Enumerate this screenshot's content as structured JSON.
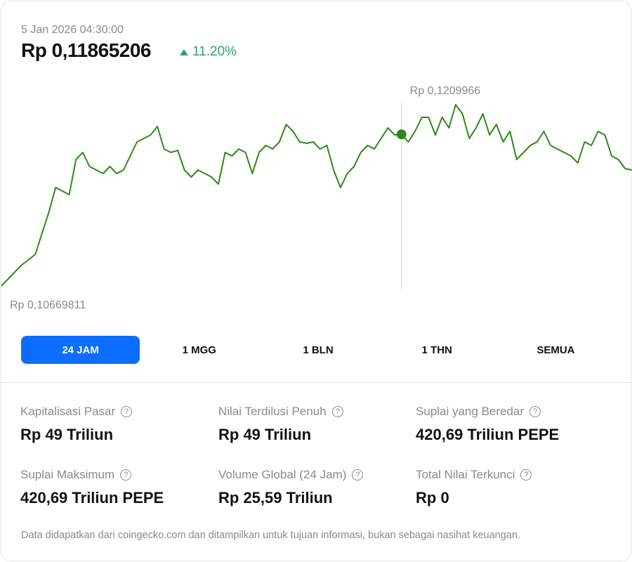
{
  "header": {
    "timestamp": "5 Jan 2026 04:30:00",
    "price": "Rp 0,11865206",
    "change": "11.20%",
    "change_icon": "triangle-up-icon",
    "change_color": "#2ea36a"
  },
  "chart_data": {
    "type": "line",
    "title": "",
    "line_color": "#2b8a18",
    "ylim": [
      0.10669811,
      0.1209966
    ],
    "max_label": "Rp 0,1209966",
    "min_label": "Rp 0,10669811",
    "hover_index": 59,
    "values": [
      0.10669811,
      0.10725,
      0.10781,
      0.10836,
      0.10875,
      0.10919,
      0.11086,
      0.11252,
      0.11446,
      0.11418,
      0.1139,
      0.11667,
      0.11723,
      0.11612,
      0.11584,
      0.11556,
      0.11612,
      0.11556,
      0.11584,
      0.11695,
      0.11806,
      0.11833,
      0.11861,
      0.11928,
      0.1175,
      0.11723,
      0.11739,
      0.11584,
      0.11529,
      0.11584,
      0.11556,
      0.11529,
      0.11473,
      0.11723,
      0.11695,
      0.1175,
      0.11723,
      0.11556,
      0.11723,
      0.11778,
      0.1175,
      0.11806,
      0.11944,
      0.11889,
      0.11806,
      0.11795,
      0.11806,
      0.1175,
      0.11778,
      0.11584,
      0.11446,
      0.11556,
      0.11612,
      0.11723,
      0.11778,
      0.1175,
      0.11833,
      0.11917,
      0.11861,
      0.11865206,
      0.11806,
      0.11889,
      0.12,
      0.12,
      0.11861,
      0.12,
      0.11917,
      0.1209966,
      0.12027,
      0.11833,
      0.11917,
      0.12027,
      0.11861,
      0.11944,
      0.11806,
      0.11889,
      0.11667,
      0.11723,
      0.11778,
      0.11806,
      0.11889,
      0.11778,
      0.1175,
      0.11723,
      0.11695,
      0.1164,
      0.11806,
      0.11778,
      0.11889,
      0.11861,
      0.11695,
      0.11667,
      0.11595,
      0.11584
    ]
  },
  "ranges": [
    "24 JAM",
    "1 MGG",
    "1 BLN",
    "1 THN",
    "SEMUA"
  ],
  "accent": "#0d6efd",
  "stats": [
    {
      "label": "Kapitalisasi Pasar",
      "value": "Rp 49 Triliun"
    },
    {
      "label": "Nilai Terdilusi Penuh",
      "value": "Rp 49 Triliun"
    },
    {
      "label": "Suplai yang Beredar",
      "value": "420,69 Triliun PEPE"
    },
    {
      "label": "Suplai Maksimum",
      "value": "420,69 Triliun PEPE"
    },
    {
      "label": "Volume Global (24 Jam)",
      "value": "Rp 25,59 Triliun"
    },
    {
      "label": "Total Nilai Terkunci",
      "value": "Rp 0"
    }
  ],
  "help_glyph": "?",
  "footer": "Data didapatkan dari coingecko.com dan ditampilkan untuk tujuan informasi, bukan sebagai nasihat keuangan."
}
